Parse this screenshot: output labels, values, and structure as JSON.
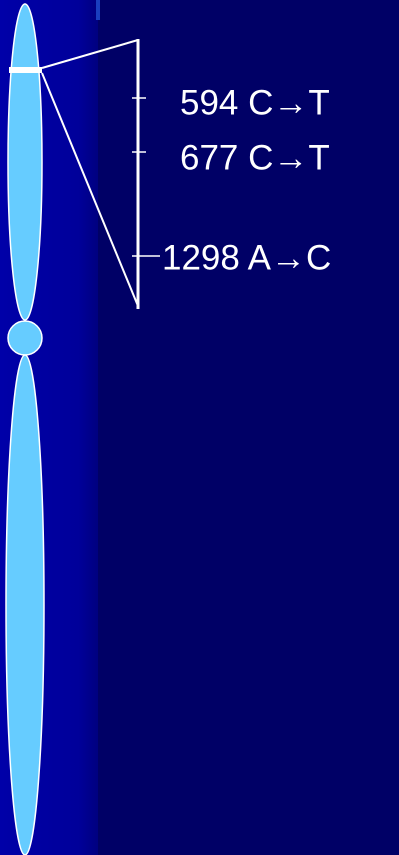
{
  "labels": [
    "594 C→T",
    "677 C→T",
    "1298 A→C"
  ]
}
